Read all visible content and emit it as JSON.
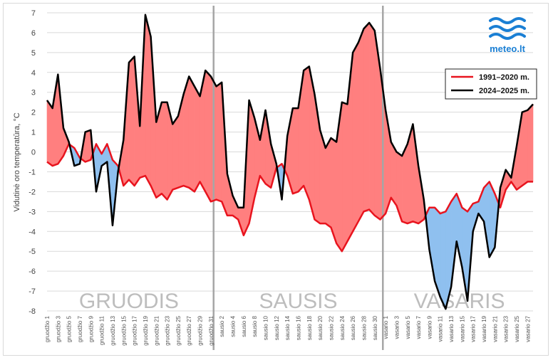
{
  "brand": {
    "name": "meteo.lt",
    "color": "#1a7fd4"
  },
  "chart_data": {
    "type": "line",
    "ylabel": "Vidutinė oro temperatūra, °C",
    "ylim": [
      -8,
      7
    ],
    "yticks": [
      7,
      6,
      5,
      4,
      3,
      2,
      1,
      0,
      -1,
      -2,
      -3,
      -4,
      -5,
      -6,
      -7,
      -8
    ],
    "grid": true,
    "legend_position": "top-right",
    "colors": {
      "normal": "#e8141e",
      "actual": "#000000",
      "warmer_fill": "#ff7f7f",
      "colder_fill": "#8fc0ef",
      "separator": "#a6a6a6"
    },
    "months": [
      "GRUODIS",
      "SAUSIS",
      "VASARIS"
    ],
    "month_boundaries": [
      31,
      62
    ],
    "categories": [
      "gruodžio 1",
      "gruodžio 2",
      "gruodžio 3",
      "gruodžio 4",
      "gruodžio 5",
      "gruodžio 6",
      "gruodžio 7",
      "gruodžio 8",
      "gruodžio 9",
      "gruodžio 10",
      "gruodžio 11",
      "gruodžio 12",
      "gruodžio 13",
      "gruodžio 14",
      "gruodžio 15",
      "gruodžio 16",
      "gruodžio 17",
      "gruodžio 18",
      "gruodžio 19",
      "gruodžio 20",
      "gruodžio 21",
      "gruodžio 22",
      "gruodžio 23",
      "gruodžio 24",
      "gruodžio 25",
      "gruodžio 26",
      "gruodžio 27",
      "gruodžio 28",
      "gruodžio 29",
      "gruodžio 30",
      "gruodžio 31",
      "sausio 1",
      "sausio 2",
      "sausio 3",
      "sausio 4",
      "sausio 5",
      "sausio 6",
      "sausio 7",
      "sausio 8",
      "sausio 9",
      "sausio 10",
      "sausio 11",
      "sausio 12",
      "sausio 13",
      "sausio 14",
      "sausio 15",
      "sausio 16",
      "sausio 17",
      "sausio 18",
      "sausio 19",
      "sausio 20",
      "sausio 21",
      "sausio 22",
      "sausio 23",
      "sausio 24",
      "sausio 25",
      "sausio 26",
      "sausio 27",
      "sausio 28",
      "sausio 29",
      "sausio 30",
      "sausio 31",
      "vasario 1",
      "vasario 2",
      "vasario 3",
      "vasario 4",
      "vasario 5",
      "vasario 6",
      "vasario 7",
      "vasario 8",
      "vasario 9",
      "vasario 10",
      "vasario 11",
      "vasario 12",
      "vasario 13",
      "vasario 14",
      "vasario 15",
      "vasario 16",
      "vasario 17",
      "vasario 18",
      "vasario 19",
      "vasario 20",
      "vasario 21",
      "vasario 22",
      "vasario 23",
      "vasario 24",
      "vasario 25",
      "vasario 26",
      "vasario 27",
      "vasario 28"
    ],
    "tick_labels": [
      "gruodžio 1",
      "gruodžio 3",
      "gruodžio 5",
      "gruodžio 7",
      "gruodžio 9",
      "gruodžio 11",
      "gruodžio 13",
      "gruodžio 15",
      "gruodžio 17",
      "gruodžio 19",
      "gruodžio 21",
      "gruodžio 23",
      "gruodžio 25",
      "gruodžio 27",
      "gruodžio 29",
      "gruodžio 31",
      "sausio 2",
      "sausio 4",
      "sausio 6",
      "sausio 8",
      "sausio 10",
      "sausio 12",
      "sausio 14",
      "sausio 16",
      "sausio 18",
      "sausio 20",
      "sausio 22",
      "sausio 24",
      "sausio 26",
      "sausio 28",
      "sausio 30",
      "vasario 1",
      "vasario 3",
      "vasario 5",
      "vasario 7",
      "vasario 9",
      "vasario 11",
      "vasario 13",
      "vasario 15",
      "vasario 17",
      "vasario 19",
      "vasario 21",
      "vasario 23",
      "vasario 25",
      "vasario 27"
    ],
    "series": [
      {
        "name": "1991–2020 m.",
        "values": [
          -0.5,
          -0.7,
          -0.6,
          -0.2,
          0.4,
          0.2,
          -0.3,
          -0.5,
          -0.4,
          0.4,
          -0.1,
          0.4,
          -0.4,
          -0.7,
          -1.7,
          -1.4,
          -1.7,
          -1.3,
          -1.2,
          -1.7,
          -2.3,
          -2.1,
          -2.4,
          -1.9,
          -1.8,
          -1.7,
          -1.8,
          -2.0,
          -1.5,
          -2.0,
          -2.5,
          -2.4,
          -2.5,
          -3.2,
          -3.2,
          -3.4,
          -4.2,
          -3.6,
          -2.3,
          -1.2,
          -1.6,
          -1.8,
          -0.8,
          -0.6,
          -1.2,
          -2.1,
          -2.0,
          -1.7,
          -2.4,
          -3.4,
          -3.6,
          -3.6,
          -3.8,
          -4.6,
          -5.0,
          -4.5,
          -4.0,
          -3.5,
          -3.0,
          -2.9,
          -3.2,
          -3.4,
          -3.1,
          -2.3,
          -2.7,
          -3.5,
          -3.6,
          -3.5,
          -3.6,
          -3.4,
          -2.8,
          -2.8,
          -3.1,
          -3.0,
          -2.5,
          -2.1,
          -2.8,
          -3.0,
          -2.6,
          -2.5,
          -1.8,
          -1.5,
          -2.1,
          -2.8,
          -1.9,
          -1.5,
          -1.9,
          -1.7,
          -1.5,
          -1.5
        ]
      },
      {
        "name": "2024–2025 m.",
        "values": [
          2.6,
          2.2,
          3.9,
          1.2,
          0.5,
          -0.7,
          -0.6,
          1.0,
          1.1,
          -2.0,
          -0.7,
          -0.5,
          -3.7,
          -1.0,
          0.6,
          4.5,
          4.8,
          1.3,
          6.9,
          5.8,
          1.5,
          2.5,
          2.5,
          1.4,
          1.8,
          2.9,
          3.8,
          3.3,
          2.8,
          4.1,
          3.8,
          3.3,
          3.5,
          -1.1,
          -2.2,
          -2.8,
          -2.8,
          2.6,
          1.7,
          0.6,
          2.1,
          0.4,
          -0.6,
          -2.4,
          0.8,
          2.2,
          2.2,
          4.1,
          4.3,
          2.9,
          1.1,
          0.2,
          0.7,
          0.5,
          2.5,
          2.4,
          5.0,
          5.5,
          6.2,
          6.5,
          6.1,
          4.2,
          2.1,
          0.5,
          0.0,
          -0.2,
          0.4,
          1.4,
          -0.7,
          -2.4,
          -4.9,
          -6.5,
          -7.3,
          -7.9,
          -6.8,
          -4.5,
          -5.8,
          -7.5,
          -4.0,
          -3.1,
          -3.5,
          -5.3,
          -4.8,
          -1.8,
          -0.9,
          -1.3,
          0.3,
          2.0,
          2.1,
          2.4
        ]
      }
    ]
  }
}
